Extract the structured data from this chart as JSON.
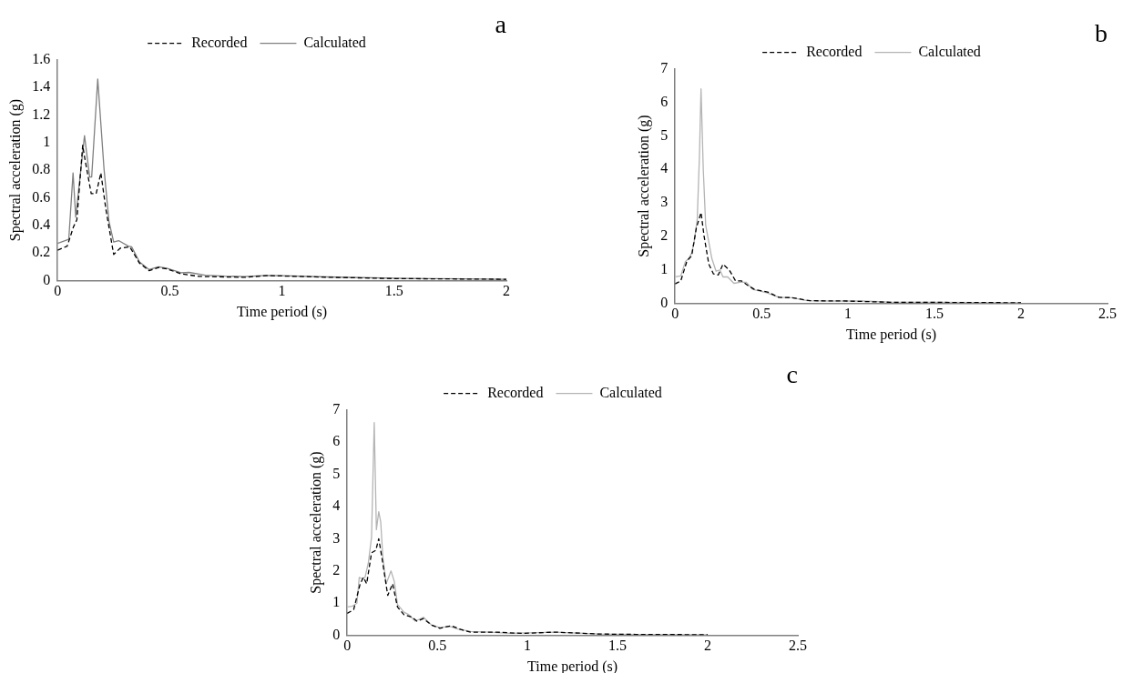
{
  "chart_data": [
    {
      "type": "line",
      "title": "a",
      "xlabel": "Time period (s)",
      "ylabel": "Spectral acceleration (g)",
      "xlim": [
        0,
        2
      ],
      "xticks": [
        0,
        0.5,
        1,
        1.5,
        2
      ],
      "ylim": [
        0,
        1.6
      ],
      "yticks": [
        0,
        0.2,
        0.4,
        0.6,
        0.8,
        1,
        1.2,
        1.4,
        1.6
      ],
      "grid": false,
      "legend": "top",
      "marker": "none",
      "series": [
        {
          "name": "Recorded",
          "color": "#000000",
          "line_style": "dashed",
          "x": [
            0,
            0.043,
            0.071,
            0.086,
            0.112,
            0.122,
            0.15,
            0.172,
            0.193,
            0.215,
            0.25,
            0.279,
            0.322,
            0.365,
            0.408,
            0.45,
            0.486,
            0.55,
            0.63,
            0.744,
            0.83,
            0.93,
            1.0,
            1.2,
            1.5,
            2.0
          ],
          "values": [
            0.22,
            0.25,
            0.39,
            0.44,
            0.98,
            0.88,
            0.63,
            0.63,
            0.78,
            0.52,
            0.19,
            0.235,
            0.245,
            0.127,
            0.072,
            0.096,
            0.085,
            0.05,
            0.031,
            0.027,
            0.024,
            0.036,
            0.034,
            0.025,
            0.015,
            0.01
          ]
        },
        {
          "name": "Calculated",
          "color": "#808080",
          "line_style": "solid",
          "x": [
            0,
            0.05,
            0.069,
            0.081,
            0.12,
            0.143,
            0.152,
            0.179,
            0.207,
            0.229,
            0.25,
            0.272,
            0.315,
            0.33,
            0.365,
            0.408,
            0.45,
            0.486,
            0.55,
            0.586,
            0.658,
            0.744,
            0.83,
            0.93,
            1.0,
            1.2,
            1.55,
            2.0
          ],
          "values": [
            0.27,
            0.3,
            0.78,
            0.46,
            1.05,
            0.75,
            0.75,
            1.46,
            0.81,
            0.43,
            0.28,
            0.29,
            0.25,
            0.245,
            0.136,
            0.08,
            0.1,
            0.09,
            0.058,
            0.06,
            0.04,
            0.033,
            0.03,
            0.038,
            0.036,
            0.027,
            0.016,
            0.01
          ]
        }
      ]
    },
    {
      "type": "line",
      "title": "b",
      "xlabel": "Time period (s)",
      "ylabel": "Spectral acceleration (g)",
      "xlim": [
        0,
        2.5
      ],
      "xticks": [
        0,
        0.5,
        1,
        1.5,
        2,
        2.5
      ],
      "ylim": [
        0,
        7
      ],
      "yticks": [
        0,
        1,
        2,
        3,
        4,
        5,
        6,
        7
      ],
      "grid": false,
      "legend": "top",
      "marker": "none",
      "series": [
        {
          "name": "Recorded",
          "color": "#000000",
          "line_style": "dashed",
          "x": [
            0,
            0.033,
            0.069,
            0.096,
            0.123,
            0.15,
            0.168,
            0.195,
            0.222,
            0.25,
            0.277,
            0.313,
            0.35,
            0.385,
            0.42,
            0.458,
            0.54,
            0.6,
            0.675,
            0.78,
            1.0,
            1.27,
            1.54,
            2.0
          ],
          "values": [
            0.58,
            0.67,
            1.27,
            1.42,
            2.25,
            2.71,
            2.0,
            1.17,
            0.88,
            0.85,
            1.17,
            1.0,
            0.67,
            0.67,
            0.54,
            0.42,
            0.33,
            0.18,
            0.17,
            0.08,
            0.07,
            0.03,
            0.03,
            0.02
          ]
        },
        {
          "name": "Calculated",
          "color": "#b4b4b4",
          "line_style": "solid",
          "x": [
            0,
            0.033,
            0.06,
            0.078,
            0.096,
            0.11,
            0.128,
            0.141,
            0.15,
            0.163,
            0.177,
            0.195,
            0.213,
            0.237,
            0.259,
            0.277,
            0.304,
            0.34,
            0.376,
            0.412,
            0.448,
            0.53,
            0.6,
            0.675,
            0.765,
            0.91,
            1.09,
            1.235,
            1.54,
            2.0
          ],
          "values": [
            0.79,
            0.82,
            1.25,
            1.33,
            1.5,
            1.83,
            2.5,
            4.42,
            6.4,
            4.0,
            2.33,
            1.83,
            1.33,
            0.96,
            1.0,
            0.79,
            0.79,
            0.6,
            0.63,
            0.63,
            0.42,
            0.32,
            0.18,
            0.17,
            0.08,
            0.07,
            0.07,
            0.04,
            0.03,
            0.02
          ]
        }
      ]
    },
    {
      "type": "line",
      "title": "c",
      "xlabel": "Time period (s)",
      "ylabel": "Spectral acceleration (g)",
      "xlim": [
        0,
        2.5
      ],
      "xticks": [
        0,
        0.5,
        1,
        1.5,
        2,
        2.5
      ],
      "ylim": [
        0,
        7
      ],
      "yticks": [
        0,
        1,
        2,
        3,
        4,
        5,
        6,
        7
      ],
      "grid": false,
      "legend": "top",
      "marker": "none",
      "series": [
        {
          "name": "Recorded",
          "color": "#000000",
          "line_style": "dashed",
          "x": [
            0,
            0.036,
            0.072,
            0.09,
            0.108,
            0.135,
            0.159,
            0.175,
            0.193,
            0.225,
            0.252,
            0.279,
            0.315,
            0.36,
            0.387,
            0.423,
            0.468,
            0.514,
            0.577,
            0.631,
            0.685,
            0.829,
            0.973,
            1.153,
            1.405,
            1.6,
            2.0
          ],
          "values": [
            0.68,
            0.8,
            1.6,
            1.8,
            1.6,
            2.56,
            2.64,
            3.0,
            2.4,
            1.24,
            1.6,
            0.88,
            0.64,
            0.56,
            0.44,
            0.52,
            0.32,
            0.22,
            0.3,
            0.18,
            0.1,
            0.1,
            0.06,
            0.1,
            0.04,
            0.03,
            0.02
          ]
        },
        {
          "name": "Calculated",
          "color": "#b4b4b4",
          "line_style": "solid",
          "x": [
            0,
            0.027,
            0.054,
            0.067,
            0.081,
            0.099,
            0.117,
            0.135,
            0.15,
            0.162,
            0.175,
            0.186,
            0.198,
            0.216,
            0.243,
            0.261,
            0.279,
            0.315,
            0.342,
            0.378,
            0.423,
            0.468,
            0.514,
            0.568,
            0.613,
            0.685,
            0.793,
            0.9,
            1.153,
            1.405,
            1.6,
            2.0
          ],
          "values": [
            0.88,
            0.9,
            1.0,
            1.8,
            1.76,
            1.8,
            2.24,
            3.04,
            6.6,
            3.28,
            3.84,
            3.52,
            2.4,
            1.6,
            2.0,
            1.68,
            0.96,
            0.72,
            0.64,
            0.44,
            0.56,
            0.32,
            0.24,
            0.28,
            0.2,
            0.12,
            0.1,
            0.06,
            0.1,
            0.04,
            0.03,
            0.02
          ]
        }
      ]
    }
  ]
}
